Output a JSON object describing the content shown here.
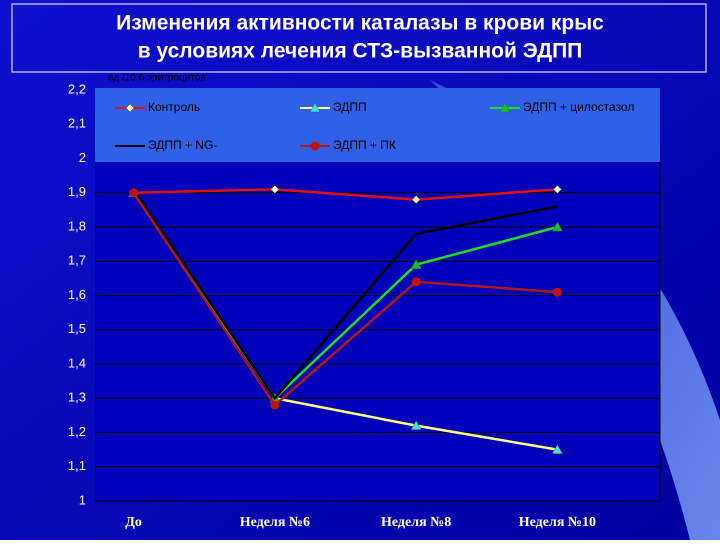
{
  "chart_data": {
    "type": "line",
    "title": [
      "Изменения активности каталазы в крови крыс",
      "в условиях лечения СТЗ-вызванной ЭДПП"
    ],
    "y_label": "ед /10 6 эритроцитов",
    "categories": [
      "До",
      "Неделя №6",
      "Неделя №8",
      "Неделя №10"
    ],
    "series": [
      {
        "name": "Контроль",
        "color": "#e01010",
        "marker": "diamond",
        "marker_color": "#ffffc0",
        "values": [
          1.9,
          1.91,
          1.88,
          1.91
        ]
      },
      {
        "name": "ЭДПП",
        "color": "#ffff80",
        "marker": "triangle",
        "marker_color": "#40e0e0",
        "values": [
          1.9,
          1.3,
          1.22,
          1.15
        ]
      },
      {
        "name": "ЭДПП + цилостазол",
        "color": "#20e020",
        "marker": "triangle",
        "marker_color": "#20c020",
        "values": [
          1.9,
          1.3,
          1.69,
          1.8
        ]
      },
      {
        "name": "ЭДПП + NG-",
        "color": "#000000",
        "marker": "none",
        "marker_color": "#000000",
        "values": [
          1.91,
          1.3,
          1.78,
          1.86
        ]
      },
      {
        "name": "ЭДПП + ПК",
        "color": "#b01818",
        "marker": "circle",
        "marker_color": "#c01010",
        "values": [
          1.9,
          1.28,
          1.64,
          1.61
        ]
      }
    ],
    "ylim": [
      1,
      2.2
    ],
    "yticks": [
      {
        "value": 1,
        "label": "1"
      },
      {
        "value": 1.1,
        "label": "1,1"
      },
      {
        "value": 1.2,
        "label": "1,2"
      },
      {
        "value": 1.3,
        "label": "1,3"
      },
      {
        "value": 1.4,
        "label": "1,4"
      },
      {
        "value": 1.5,
        "label": "1,5"
      },
      {
        "value": 1.6,
        "label": "1,6"
      },
      {
        "value": 1.7,
        "label": "1,7"
      },
      {
        "value": 1.8,
        "label": "1,8"
      },
      {
        "value": 1.9,
        "label": "1,9"
      },
      {
        "value": 2,
        "label": "2"
      },
      {
        "value": 2.1,
        "label": "2,1"
      },
      {
        "value": 2.2,
        "label": "2,2"
      }
    ],
    "grid": true
  }
}
